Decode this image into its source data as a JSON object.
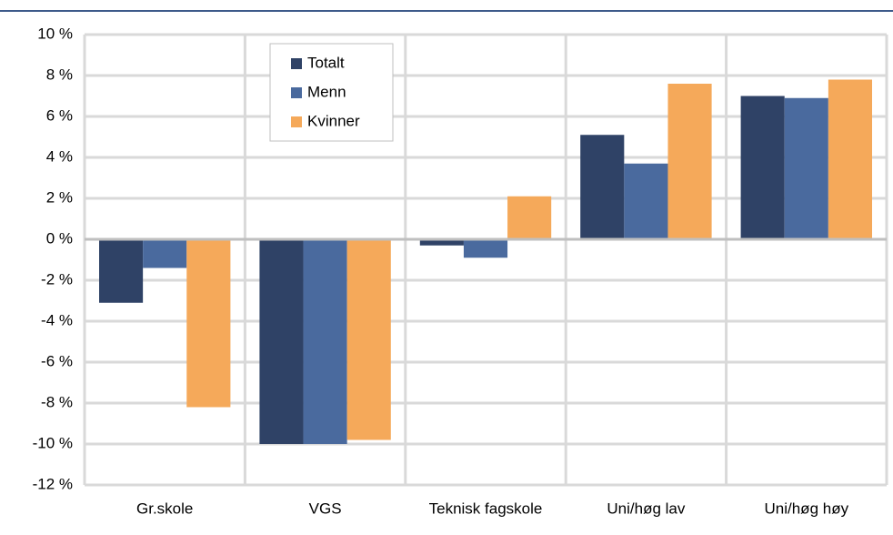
{
  "chart_data": {
    "type": "bar",
    "categories": [
      "Gr.skole",
      "VGS",
      "Teknisk fagskole",
      "Uni/høg lav",
      "Uni/høg høy"
    ],
    "series": [
      {
        "name": "Totalt",
        "color": "#2f4266",
        "values": [
          -3.1,
          -10.0,
          -0.3,
          5.1,
          7.0
        ]
      },
      {
        "name": "Menn",
        "color": "#4a6a9e",
        "values": [
          -1.4,
          -10.0,
          -0.9,
          3.7,
          6.9
        ]
      },
      {
        "name": "Kvinner",
        "color": "#f5a95a",
        "values": [
          -8.2,
          -9.8,
          2.1,
          7.6,
          7.8
        ]
      }
    ],
    "ylim": [
      -12,
      10
    ],
    "yticks": [
      {
        "value": -12,
        "label": "-12 %"
      },
      {
        "value": -10,
        "label": "-10 %"
      },
      {
        "value": -8,
        "label": "-8 %"
      },
      {
        "value": -6,
        "label": "-6 %"
      },
      {
        "value": -4,
        "label": "-4 %"
      },
      {
        "value": -2,
        "label": "-2 %"
      },
      {
        "value": 0,
        "label": "0 %"
      },
      {
        "value": 2,
        "label": "2 %"
      },
      {
        "value": 4,
        "label": "4 %"
      },
      {
        "value": 6,
        "label": "6 %"
      },
      {
        "value": 8,
        "label": "8 %"
      },
      {
        "value": 10,
        "label": "10 %"
      }
    ],
    "grid": true
  }
}
